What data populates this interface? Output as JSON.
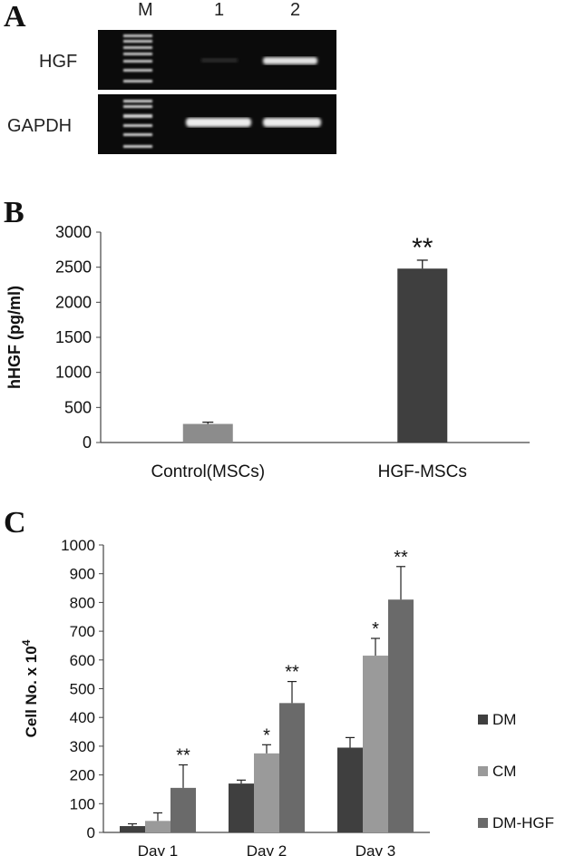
{
  "panelA": {
    "letter": "A",
    "lanes": [
      "M",
      "1",
      "2"
    ],
    "rows": [
      "HGF",
      "GAPDH"
    ]
  },
  "panelB": {
    "letter": "B",
    "chart_data": {
      "type": "bar",
      "title": "",
      "xlabel": "",
      "ylabel": "hHGF (pg/ml)",
      "categories": [
        "Control(MSCs)",
        "HGF-MSCs"
      ],
      "values": [
        265,
        2480
      ],
      "errors": [
        25,
        120
      ],
      "annotations": [
        "",
        "**"
      ],
      "ylim": [
        0,
        3000
      ],
      "yticks": [
        "0",
        "500",
        "1000",
        "1500",
        "2000",
        "2500",
        "3000"
      ],
      "colors": [
        "#8c8c8c",
        "#3f3f3f"
      ]
    }
  },
  "panelC": {
    "letter": "C",
    "chart_data": {
      "type": "bar",
      "title": "",
      "xlabel": "",
      "ylabel": "Cell No. x 10",
      "ylabel_superscript": "4",
      "categories": [
        "Day 1",
        "Day 2",
        "Day 3"
      ],
      "series": [
        {
          "name": "DM",
          "values": [
            22,
            170,
            295
          ],
          "errors": [
            8,
            12,
            35
          ],
          "annotations": [
            "",
            "",
            ""
          ],
          "color": "#3f3f3f"
        },
        {
          "name": "CM",
          "values": [
            40,
            275,
            615
          ],
          "errors": [
            28,
            30,
            60
          ],
          "annotations": [
            "",
            "*",
            "*"
          ],
          "color": "#9a9a9a"
        },
        {
          "name": "DM-HGF",
          "values": [
            155,
            450,
            810
          ],
          "errors": [
            80,
            75,
            115
          ],
          "annotations": [
            "**",
            "**",
            "**"
          ],
          "color": "#6a6a6a"
        }
      ],
      "ylim": [
        0,
        1000
      ],
      "yticks": [
        "0",
        "100",
        "200",
        "300",
        "400",
        "500",
        "600",
        "700",
        "800",
        "900",
        "1000"
      ],
      "legend_position": "right"
    }
  }
}
